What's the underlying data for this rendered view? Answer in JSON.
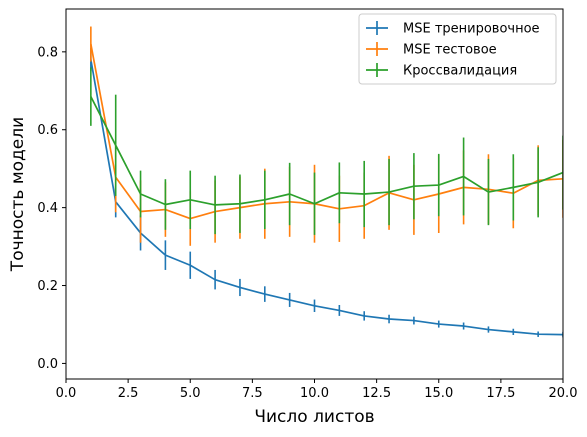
{
  "chart_data": {
    "type": "line",
    "title": "",
    "xlabel": "Число листов",
    "ylabel": "Точность модели",
    "xlim": [
      0.0,
      20.0
    ],
    "ylim": [
      -0.04,
      0.91
    ],
    "xticks": [
      0.0,
      2.5,
      5.0,
      7.5,
      10.0,
      12.5,
      15.0,
      17.5,
      20.0
    ],
    "xtick_labels": [
      "0.0",
      "2.5",
      "5.0",
      "7.5",
      "10.0",
      "12.5",
      "15.0",
      "17.5",
      "20.0"
    ],
    "yticks": [
      0.0,
      0.2,
      0.4,
      0.6,
      0.8
    ],
    "ytick_labels": [
      "0.0",
      "0.2",
      "0.4",
      "0.6",
      "0.8"
    ],
    "grid": false,
    "legend_position": "top-right",
    "x": [
      1,
      2,
      3,
      4,
      5,
      6,
      7,
      8,
      9,
      10,
      11,
      12,
      13,
      14,
      15,
      16,
      17,
      18,
      19,
      20
    ],
    "series": [
      {
        "name": "MSE тренировочное",
        "color": "#1f77b4",
        "values": [
          0.78,
          0.415,
          0.335,
          0.278,
          0.252,
          0.215,
          0.195,
          0.178,
          0.163,
          0.148,
          0.136,
          0.122,
          0.114,
          0.11,
          0.101,
          0.096,
          0.087,
          0.081,
          0.075,
          0.074
        ],
        "errors": [
          0.03,
          0.04,
          0.045,
          0.038,
          0.035,
          0.025,
          0.022,
          0.02,
          0.018,
          0.016,
          0.014,
          0.012,
          0.011,
          0.01,
          0.009,
          0.009,
          0.008,
          0.008,
          0.007,
          0.007
        ]
      },
      {
        "name": "MSE тестовое",
        "color": "#ff7f0e",
        "values": [
          0.82,
          0.478,
          0.39,
          0.395,
          0.372,
          0.39,
          0.4,
          0.41,
          0.415,
          0.41,
          0.397,
          0.405,
          0.438,
          0.42,
          0.435,
          0.452,
          0.447,
          0.437,
          0.47,
          0.474
        ],
        "errors": [
          0.045,
          0.09,
          0.08,
          0.07,
          0.07,
          0.08,
          0.08,
          0.09,
          0.09,
          0.1,
          0.085,
          0.085,
          0.095,
          0.09,
          0.1,
          0.095,
          0.09,
          0.09,
          0.09,
          0.1
        ]
      },
      {
        "name": "Кроссвалидация",
        "color": "#2ca02c",
        "values": [
          0.685,
          0.56,
          0.435,
          0.408,
          0.42,
          0.407,
          0.41,
          0.42,
          0.435,
          0.41,
          0.438,
          0.435,
          0.44,
          0.455,
          0.458,
          0.48,
          0.44,
          0.452,
          0.465,
          0.49
        ],
        "errors": [
          0.075,
          0.13,
          0.06,
          0.065,
          0.075,
          0.075,
          0.075,
          0.075,
          0.08,
          0.08,
          0.078,
          0.085,
          0.085,
          0.085,
          0.08,
          0.1,
          0.085,
          0.085,
          0.09,
          0.095
        ]
      }
    ]
  }
}
